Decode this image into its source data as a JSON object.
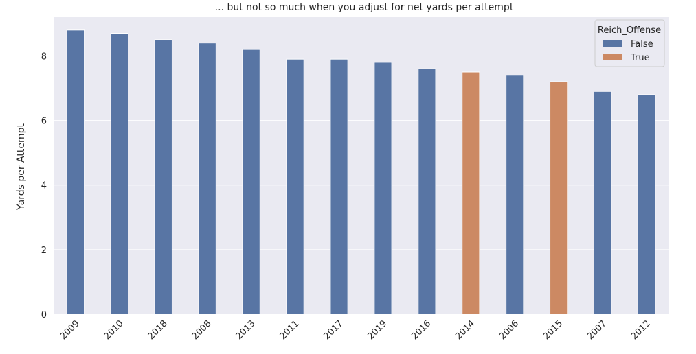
{
  "chart_data": {
    "type": "bar",
    "title": "... but not so much when you adjust for net yards per attempt",
    "xlabel": "",
    "ylabel": "Yards per Attempt",
    "ylim": [
      0,
      9.2
    ],
    "yticks": [
      0,
      2,
      4,
      6,
      8
    ],
    "grid": true,
    "legend_placement": "top-right",
    "legend_title": "Reich_Offense",
    "categories": [
      "2009",
      "2010",
      "2018",
      "2008",
      "2013",
      "2011",
      "2017",
      "2019",
      "2016",
      "2014",
      "2006",
      "2015",
      "2007",
      "2012"
    ],
    "values": [
      8.8,
      8.7,
      8.5,
      8.4,
      8.2,
      7.9,
      7.9,
      7.8,
      7.6,
      7.5,
      7.4,
      7.2,
      6.9,
      6.8
    ],
    "hue": [
      "False",
      "False",
      "False",
      "False",
      "False",
      "False",
      "False",
      "False",
      "False",
      "True",
      "False",
      "True",
      "False",
      "False"
    ],
    "series": [
      {
        "name": "False",
        "color": "#5875a4"
      },
      {
        "name": "True",
        "color": "#cc8963"
      }
    ],
    "background_color": "#eaeaf2",
    "grid_color": "#ffffff"
  }
}
